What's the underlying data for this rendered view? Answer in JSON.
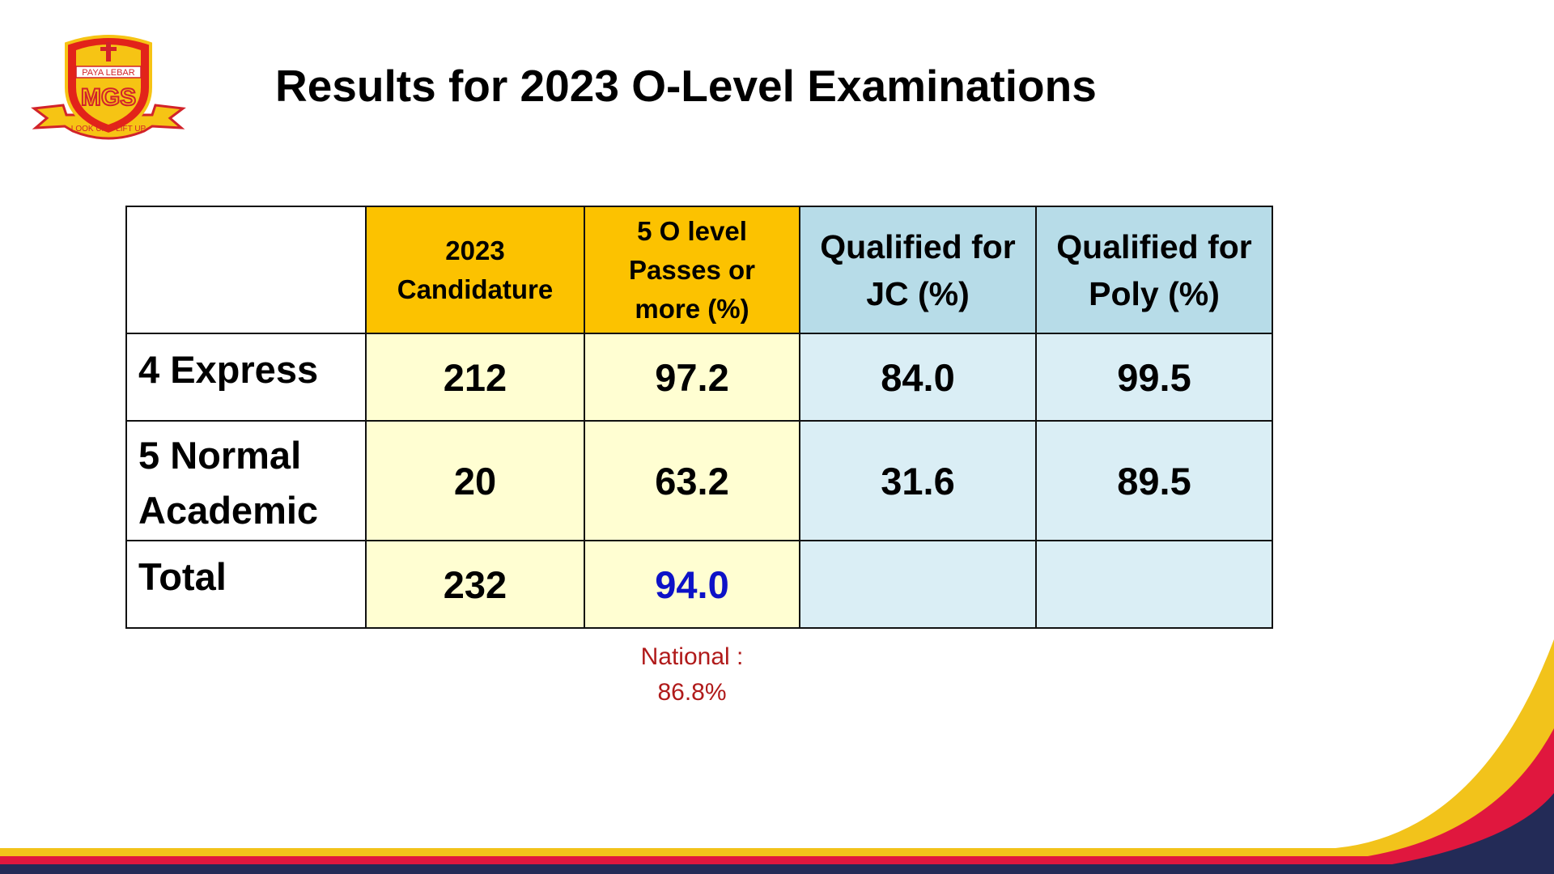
{
  "slide": {
    "title": "Results for 2023 O-Level Examinations",
    "logo": {
      "name": "PAYA LEBAR",
      "initials": "MGS",
      "motto": "LOOK UP – LIFT UP"
    },
    "table": {
      "headers": [
        "",
        "2023 Candidature",
        "5 O level Passes or more (%)",
        "Qualified for JC (%)",
        "Qualified for Poly (%)"
      ],
      "rows": [
        {
          "label": "4 Express",
          "candidature": "212",
          "passes": "97.2",
          "jc": "84.0",
          "poly": "99.5"
        },
        {
          "label": "5 Normal Academic",
          "candidature": "20",
          "passes": "63.2",
          "jc": "31.6",
          "poly": "89.5"
        },
        {
          "label": "Total",
          "candidature": "232",
          "passes": "94.0",
          "jc": "",
          "poly": ""
        }
      ]
    },
    "national_note": "National :\n86.8%",
    "colors": {
      "header_orange": "#fcc200",
      "header_blue": "#b7dce8",
      "cell_yellow": "#fffed2",
      "cell_blue": "#daeef5",
      "total_highlight": "#0d12c7",
      "national_red": "#b01a1a",
      "band_yellow": "#f2c31b",
      "band_red": "#e0173e",
      "band_navy": "#232b57"
    }
  }
}
